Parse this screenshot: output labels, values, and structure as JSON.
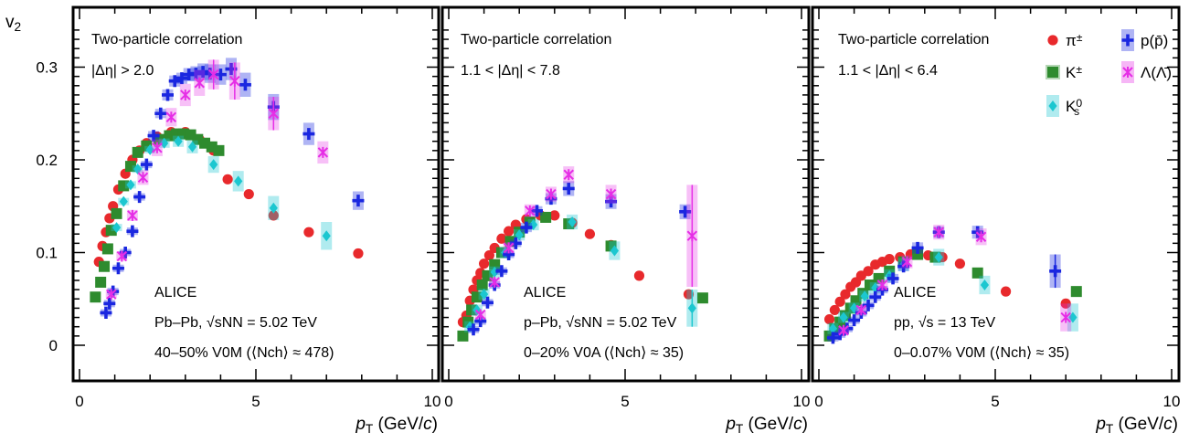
{
  "ylabel": "v",
  "ylabel_sub": "2",
  "xlabel": "p",
  "xlabel_sub": "T",
  "xlabel_unit": " (GeV/c)",
  "y_ticks": [
    "0",
    "0.1",
    "0.2",
    "0.3"
  ],
  "x_ticks": [
    "0",
    "5",
    "10"
  ],
  "legend": [
    {
      "id": "pi",
      "text": "π",
      "sup": "±",
      "color": "#e8292c"
    },
    {
      "id": "k",
      "text": "K",
      "sup": "±",
      "color": "#2e8b2e"
    },
    {
      "id": "k0",
      "text": "K",
      "sup": "0",
      "sub": "s",
      "color": "#1cc7d0"
    },
    {
      "id": "p",
      "text": "p(p̄)",
      "color": "#1a27e0"
    },
    {
      "id": "lam",
      "text": "Λ(Λ̄)",
      "color": "#e62ee6"
    }
  ],
  "colors": {
    "pi": "#e8292c",
    "k": "#2e8b2e",
    "k0": "#1cc7d0",
    "p": "#1a27e0",
    "lam": "#e62ee6"
  },
  "chart_data": [
    {
      "type": "scatter",
      "panel": "Pb-Pb",
      "header": "Two-particle correlation",
      "selection": "|Δη| > 2.0",
      "experiment": "ALICE",
      "system": "Pb–Pb, √sNN = 5.02 TeV",
      "centrality": "40–50% V0M   (⟨Nch⟩ ≈ 478)",
      "xlim": [
        0,
        10
      ],
      "ylim": [
        -0.02,
        0.36
      ],
      "series": [
        {
          "id": "pi",
          "x": [
            0.55,
            0.65,
            0.75,
            0.85,
            0.95,
            1.1,
            1.3,
            1.5,
            1.7,
            1.9,
            2.2,
            2.6,
            3.0,
            3.4,
            3.8,
            4.2,
            4.8,
            5.5,
            6.5,
            7.9
          ],
          "y": [
            0.09,
            0.107,
            0.122,
            0.137,
            0.15,
            0.168,
            0.185,
            0.2,
            0.21,
            0.218,
            0.225,
            0.23,
            0.23,
            0.222,
            0.21,
            0.179,
            0.163,
            0.14,
            0.122,
            0.099
          ],
          "err": []
        },
        {
          "id": "k",
          "x": [
            0.45,
            0.6,
            0.7,
            0.8,
            0.9,
            1.05,
            1.25,
            1.45,
            1.65,
            1.9,
            2.25,
            2.55,
            2.75,
            2.95,
            3.15,
            3.35,
            3.55,
            3.75,
            3.95
          ],
          "y": [
            0.052,
            0.068,
            0.085,
            0.104,
            0.124,
            0.142,
            0.172,
            0.193,
            0.208,
            0.215,
            0.222,
            0.226,
            0.228,
            0.228,
            0.227,
            0.222,
            0.218,
            0.214,
            0.21
          ],
          "err": []
        },
        {
          "id": "k0",
          "x": [
            1.05,
            1.25,
            1.45,
            1.65,
            2.0,
            2.4,
            2.8,
            3.2,
            3.8,
            4.5,
            5.5,
            7.0
          ],
          "y": [
            0.127,
            0.155,
            0.173,
            0.19,
            0.211,
            0.218,
            0.22,
            0.214,
            0.195,
            0.177,
            0.148,
            0.118
          ],
          "err": [
            0.003,
            0.003,
            0.003,
            0.004,
            0.004,
            0.005,
            0.006,
            0.007,
            0.009,
            0.011,
            0.013,
            0.015
          ]
        },
        {
          "id": "p",
          "x": [
            0.75,
            0.85,
            0.95,
            1.1,
            1.3,
            1.5,
            1.7,
            1.9,
            2.1,
            2.3,
            2.5,
            2.7,
            2.9,
            3.1,
            3.3,
            3.5,
            3.7,
            4.0,
            4.3,
            4.7,
            5.5,
            6.5,
            7.9
          ],
          "y": [
            0.035,
            0.045,
            0.058,
            0.083,
            0.1,
            0.123,
            0.16,
            0.195,
            0.226,
            0.25,
            0.27,
            0.285,
            0.288,
            0.292,
            0.293,
            0.295,
            0.293,
            0.292,
            0.298,
            0.281,
            0.257,
            0.228,
            0.156
          ],
          "err": [
            0.003,
            0.003,
            0.003,
            0.003,
            0.003,
            0.004,
            0.004,
            0.004,
            0.005,
            0.005,
            0.006,
            0.006,
            0.006,
            0.007,
            0.008,
            0.009,
            0.01,
            0.011,
            0.012,
            0.013,
            0.014,
            0.012,
            0.01
          ]
        },
        {
          "id": "lam",
          "x": [
            0.9,
            1.2,
            1.5,
            1.8,
            2.2,
            2.6,
            3.0,
            3.4,
            3.8,
            4.4,
            5.5,
            6.9
          ],
          "y": [
            0.055,
            0.096,
            0.14,
            0.181,
            0.213,
            0.246,
            0.27,
            0.283,
            0.292,
            0.285,
            0.25,
            0.208
          ],
          "err": [
            0.004,
            0.005,
            0.006,
            0.008,
            0.009,
            0.01,
            0.012,
            0.014,
            0.016,
            0.02,
            0.018,
            0.012
          ]
        }
      ]
    },
    {
      "type": "scatter",
      "panel": "p-Pb",
      "header": "Two-particle correlation",
      "selection": "1.1 < |Δη| < 7.8",
      "experiment": "ALICE",
      "system": "p–Pb, √sNN = 5.02 TeV",
      "centrality": "0–20% V0A   (⟨Nch⟩ ≈ 35)",
      "xlim": [
        0,
        10
      ],
      "ylim": [
        -0.02,
        0.36
      ],
      "series": [
        {
          "id": "pi",
          "x": [
            0.4,
            0.5,
            0.6,
            0.7,
            0.8,
            0.9,
            1.0,
            1.15,
            1.3,
            1.5,
            1.7,
            1.9,
            2.2,
            2.6,
            3.0,
            3.5,
            4.0,
            4.6,
            5.4,
            6.8
          ],
          "y": [
            0.025,
            0.032,
            0.048,
            0.06,
            0.07,
            0.078,
            0.088,
            0.097,
            0.105,
            0.115,
            0.123,
            0.13,
            0.136,
            0.14,
            0.14,
            0.132,
            0.12,
            0.108,
            0.075,
            0.055
          ],
          "err": []
        },
        {
          "id": "k",
          "x": [
            0.4,
            0.55,
            0.65,
            0.8,
            0.95,
            1.1,
            1.3,
            1.5,
            1.75,
            2.0,
            2.3,
            2.75,
            3.4,
            4.6,
            7.2
          ],
          "y": [
            0.01,
            0.025,
            0.038,
            0.052,
            0.065,
            0.075,
            0.087,
            0.1,
            0.112,
            0.122,
            0.133,
            0.138,
            0.131,
            0.107,
            0.051
          ],
          "err": []
        },
        {
          "id": "k0",
          "x": [
            0.6,
            0.8,
            1.0,
            1.3,
            1.6,
            2.0,
            2.4,
            3.5,
            4.7,
            6.9
          ],
          "y": [
            0.02,
            0.038,
            0.055,
            0.079,
            0.1,
            0.119,
            0.13,
            0.133,
            0.102,
            0.04
          ],
          "err": [
            0.006,
            0.006,
            0.006,
            0.006,
            0.006,
            0.006,
            0.006,
            0.008,
            0.01,
            0.02
          ]
        },
        {
          "id": "p",
          "x": [
            0.7,
            0.9,
            1.1,
            1.3,
            1.5,
            1.7,
            1.9,
            2.2,
            2.5,
            2.9,
            3.4,
            4.6,
            6.7
          ],
          "y": [
            0.017,
            0.026,
            0.046,
            0.065,
            0.08,
            0.098,
            0.11,
            0.127,
            0.145,
            0.158,
            0.169,
            0.155,
            0.144
          ],
          "err": [
            0.003,
            0.003,
            0.003,
            0.003,
            0.004,
            0.004,
            0.004,
            0.005,
            0.005,
            0.006,
            0.008,
            0.008,
            0.008
          ]
        },
        {
          "id": "lam",
          "x": [
            0.9,
            1.3,
            1.7,
            2.3,
            2.9,
            3.4,
            4.6,
            6.9
          ],
          "y": [
            0.033,
            0.068,
            0.105,
            0.145,
            0.163,
            0.184,
            0.163,
            0.118
          ],
          "err": [
            0.004,
            0.005,
            0.006,
            0.007,
            0.008,
            0.009,
            0.01,
            0.055
          ]
        }
      ]
    },
    {
      "type": "scatter",
      "panel": "pp",
      "header": "Two-particle correlation",
      "selection": "1.1 < |Δη| < 6.4",
      "experiment": "ALICE",
      "system": "pp, √s = 13 TeV",
      "centrality": "0–0.07% V0M   (⟨Nch⟩ ≈ 35)",
      "xlim": [
        0,
        10
      ],
      "ylim": [
        -0.02,
        0.36
      ],
      "series": [
        {
          "id": "pi",
          "x": [
            0.3,
            0.45,
            0.6,
            0.75,
            0.9,
            1.05,
            1.2,
            1.4,
            1.6,
            1.8,
            2.0,
            2.3,
            2.6,
            3.1,
            3.5,
            4.0,
            5.3,
            7.0
          ],
          "y": [
            0.028,
            0.038,
            0.047,
            0.055,
            0.063,
            0.068,
            0.075,
            0.08,
            0.087,
            0.09,
            0.093,
            0.095,
            0.098,
            0.097,
            0.095,
            0.088,
            0.058,
            0.045
          ],
          "err": []
        },
        {
          "id": "k",
          "x": [
            0.3,
            0.45,
            0.6,
            0.75,
            0.9,
            1.05,
            1.25,
            1.45,
            1.7,
            2.0,
            2.4,
            2.8,
            3.3,
            4.5,
            7.3
          ],
          "y": [
            0.01,
            0.018,
            0.025,
            0.032,
            0.04,
            0.048,
            0.056,
            0.065,
            0.072,
            0.08,
            0.09,
            0.098,
            0.095,
            0.078,
            0.058
          ],
          "err": []
        },
        {
          "id": "k0",
          "x": [
            0.4,
            0.7,
            1.0,
            1.3,
            1.6,
            2.0,
            2.4,
            3.4,
            4.7,
            7.2
          ],
          "y": [
            0.018,
            0.03,
            0.04,
            0.053,
            0.062,
            0.075,
            0.087,
            0.095,
            0.065,
            0.03
          ],
          "err": [
            0.006,
            0.006,
            0.006,
            0.006,
            0.006,
            0.007,
            0.007,
            0.009,
            0.01,
            0.015
          ]
        },
        {
          "id": "p",
          "x": [
            0.4,
            0.6,
            0.8,
            1.0,
            1.2,
            1.4,
            1.6,
            1.8,
            2.1,
            2.4,
            2.8,
            3.4,
            4.5,
            6.7
          ],
          "y": [
            0.008,
            0.012,
            0.018,
            0.027,
            0.035,
            0.043,
            0.052,
            0.06,
            0.072,
            0.085,
            0.105,
            0.122,
            0.122,
            0.08
          ],
          "err": [
            0.003,
            0.003,
            0.003,
            0.003,
            0.003,
            0.004,
            0.004,
            0.004,
            0.005,
            0.005,
            0.006,
            0.006,
            0.007,
            0.018
          ]
        },
        {
          "id": "lam",
          "x": [
            0.7,
            1.2,
            1.8,
            2.5,
            3.4,
            4.6,
            7.0
          ],
          "y": [
            0.016,
            0.038,
            0.065,
            0.09,
            0.122,
            0.117,
            0.03
          ],
          "err": [
            0.004,
            0.005,
            0.006,
            0.007,
            0.008,
            0.009,
            0.015
          ]
        }
      ]
    }
  ]
}
